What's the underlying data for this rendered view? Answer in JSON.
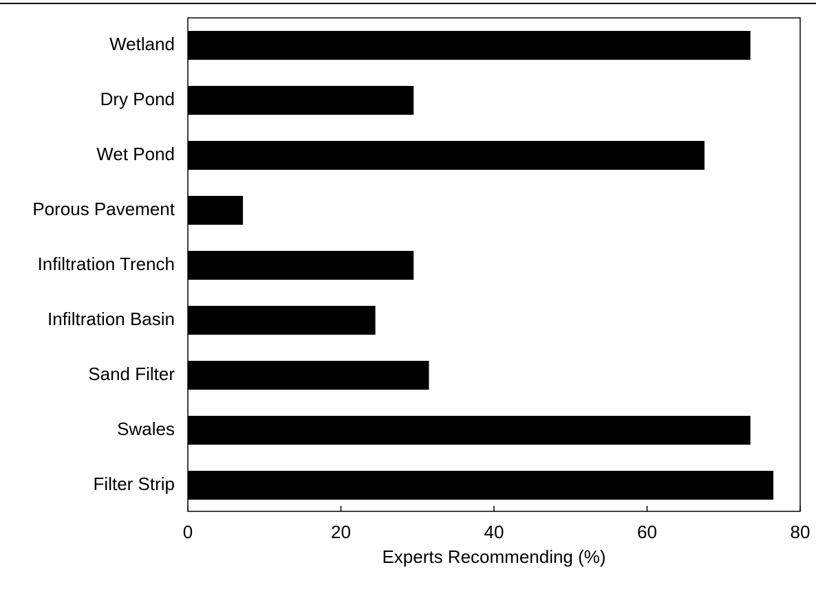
{
  "chart_data": {
    "type": "bar",
    "orientation": "horizontal",
    "categories": [
      "Wetland",
      "Dry Pond",
      "Wet Pond",
      "Porous Pavement",
      "Infiltration Trench",
      "Infiltration Basin",
      "Sand Filter",
      "Swales",
      "Filter Strip"
    ],
    "values": [
      73.5,
      29.5,
      67.5,
      7.2,
      29.5,
      24.5,
      31.5,
      73.5,
      76.5
    ],
    "xlabel": "Experts Recommending (%)",
    "ylabel": "",
    "xlim": [
      0,
      80
    ],
    "xticks": [
      0,
      20,
      40,
      60,
      80
    ],
    "grid": false,
    "legend": "none",
    "bar_color": "#000000"
  }
}
